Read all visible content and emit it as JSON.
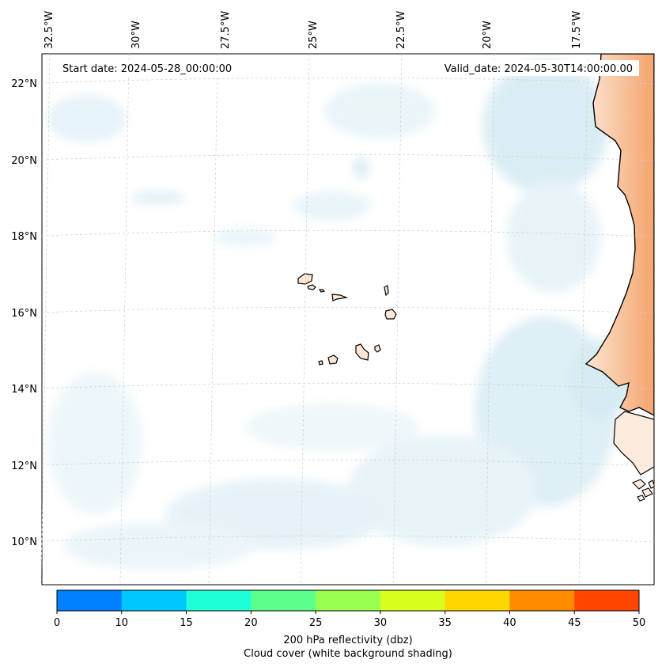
{
  "header": {
    "start_date": "Start date: 2024-05-28_00:00:00",
    "valid_date": "Valid_date: 2024-05-30T14:00:00.00"
  },
  "axes": {
    "lon_labels": [
      "32.5°W",
      "30°W",
      "27.5°W",
      "25°W",
      "22.5°W",
      "20°W",
      "17.5°W"
    ],
    "lat_labels": [
      "22°N",
      "20°N",
      "18°N",
      "16°N",
      "14°N",
      "12°N",
      "10°N"
    ]
  },
  "colorbar": {
    "ticks": [
      "0",
      "10",
      "15",
      "20",
      "25",
      "30",
      "35",
      "40",
      "45",
      "50"
    ],
    "colors": [
      "#0080ff",
      "#00c8ff",
      "#1effd8",
      "#5aff8c",
      "#96ff50",
      "#d8ff1e",
      "#ffd700",
      "#ff8c00",
      "#ff4500"
    ],
    "label_line1": "200 hPa reflectivity (dbz)",
    "label_line2": "Cloud cover (white background shading)"
  },
  "colors": {
    "cloud": "#cfe8f1",
    "land": "#f7b98a",
    "coast": "#000000",
    "grid": "#c8c8c8"
  }
}
